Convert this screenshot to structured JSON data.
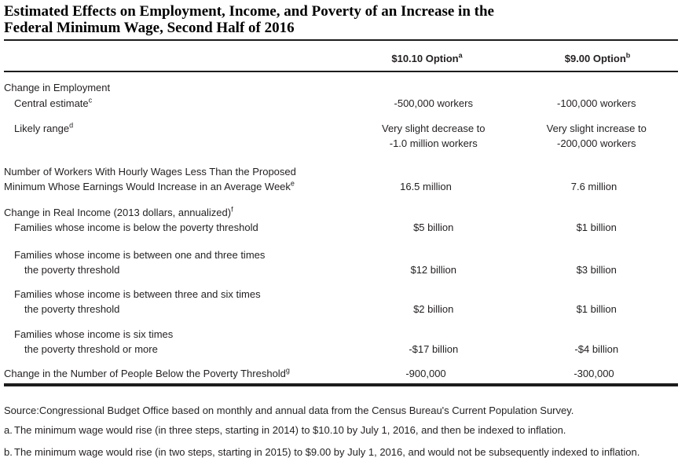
{
  "title": {
    "line1": "Estimated Effects on Employment, Income, and Poverty of an Increase in the",
    "line2": "Federal Minimum Wage, Second Half of 2016"
  },
  "columns": {
    "col1": {
      "label": "$10.10 Option",
      "sup": "a"
    },
    "col2": {
      "label": "$9.00 Option",
      "sup": "b"
    }
  },
  "rows": [
    {
      "label1": "Change in Employment"
    },
    {
      "label1": "Central estimate",
      "sup": "c",
      "v1": "-500,000 workers",
      "v2": "-100,000 workers"
    },
    {
      "label1": "Likely range",
      "sup": "d",
      "v1a": "Very slight decrease to",
      "v1b": "-1.0 million workers",
      "v2a": "Very slight increase to",
      "v2b": "-200,000 workers"
    },
    {
      "label1": "Number of Workers With Hourly Wages Less Than the Proposed",
      "label2": "Minimum Whose Earnings Would Increase in an Average Week",
      "sup2": "e",
      "v1": "16.5 million",
      "v2": "7.6 million"
    },
    {
      "label1": "Change in Real Income (2013 dollars, annualized)",
      "sup": "f"
    },
    {
      "label1": "Families whose income is below the poverty threshold",
      "v1": "$5 billion",
      "v2": "$1 billion"
    },
    {
      "label1": "Families whose income is between one and three times",
      "label2": "the poverty threshold",
      "v1": "$12 billion",
      "v2": "$3 billion"
    },
    {
      "label1": "Families whose income is between three and six times",
      "label2": "the poverty threshold",
      "v1": "$2 billion",
      "v2": "$1 billion"
    },
    {
      "label1": "Families whose income is six times",
      "label2": "the poverty threshold or more",
      "v1": "-$17 billion",
      "v2": "-$4 billion"
    },
    {
      "label1": "Change in the Number of People Below the Poverty Threshold",
      "sup": "g",
      "v1": "-900,000",
      "v2": "-300,000"
    }
  ],
  "footer": {
    "source_label": "Source:",
    "source_text": "Congressional Budget Office based on monthly and annual data from the Census Bureau's Current Population Survey.",
    "notes": [
      {
        "marker": "a.",
        "text": "The minimum wage would rise (in three steps, starting in 2014) to $10.10 by July 1, 2016, and then be indexed to inflation."
      },
      {
        "marker": "b.",
        "text": "The minimum wage would rise (in two steps, starting in 2015) to $9.00 by July 1, 2016, and would not be subsequently indexed to inflation."
      }
    ]
  },
  "colors": {
    "text": "#231f20",
    "rule": "#1c1c1c",
    "background": "#ffffff"
  }
}
